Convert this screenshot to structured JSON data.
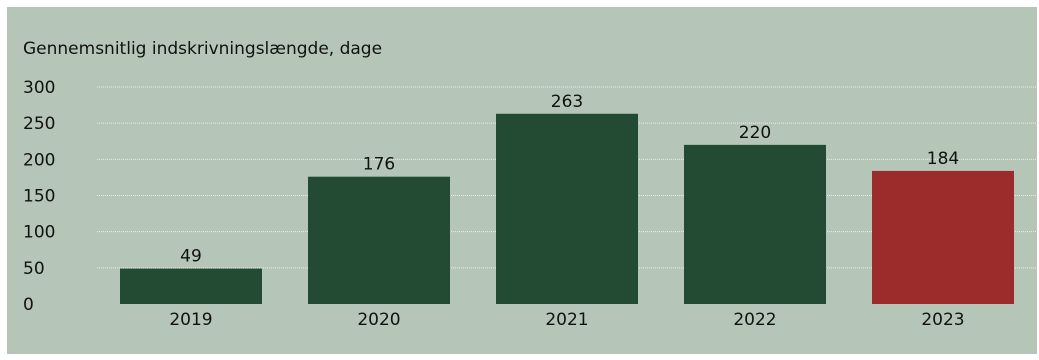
{
  "chart_data": {
    "type": "bar",
    "title": "",
    "ylabel": "Gennemsnitlig indskrivningslængde, dage",
    "xlabel": "",
    "categories": [
      "2019",
      "2020",
      "2021",
      "2022",
      "2023"
    ],
    "values": [
      49,
      176,
      263,
      220,
      184
    ],
    "data_labels": [
      "49",
      "176",
      "263",
      "220",
      "184"
    ],
    "yticks": [
      "0",
      "50",
      "100",
      "150",
      "200",
      "250",
      "300"
    ],
    "ylim": [
      0,
      300
    ],
    "grid": true,
    "legend": "none",
    "colors": {
      "background": "#b5c6b8",
      "bar": "#234a32",
      "highlight_bar": "#9c2b2b",
      "grid": "#e9efe9"
    },
    "highlight_index": 4
  }
}
